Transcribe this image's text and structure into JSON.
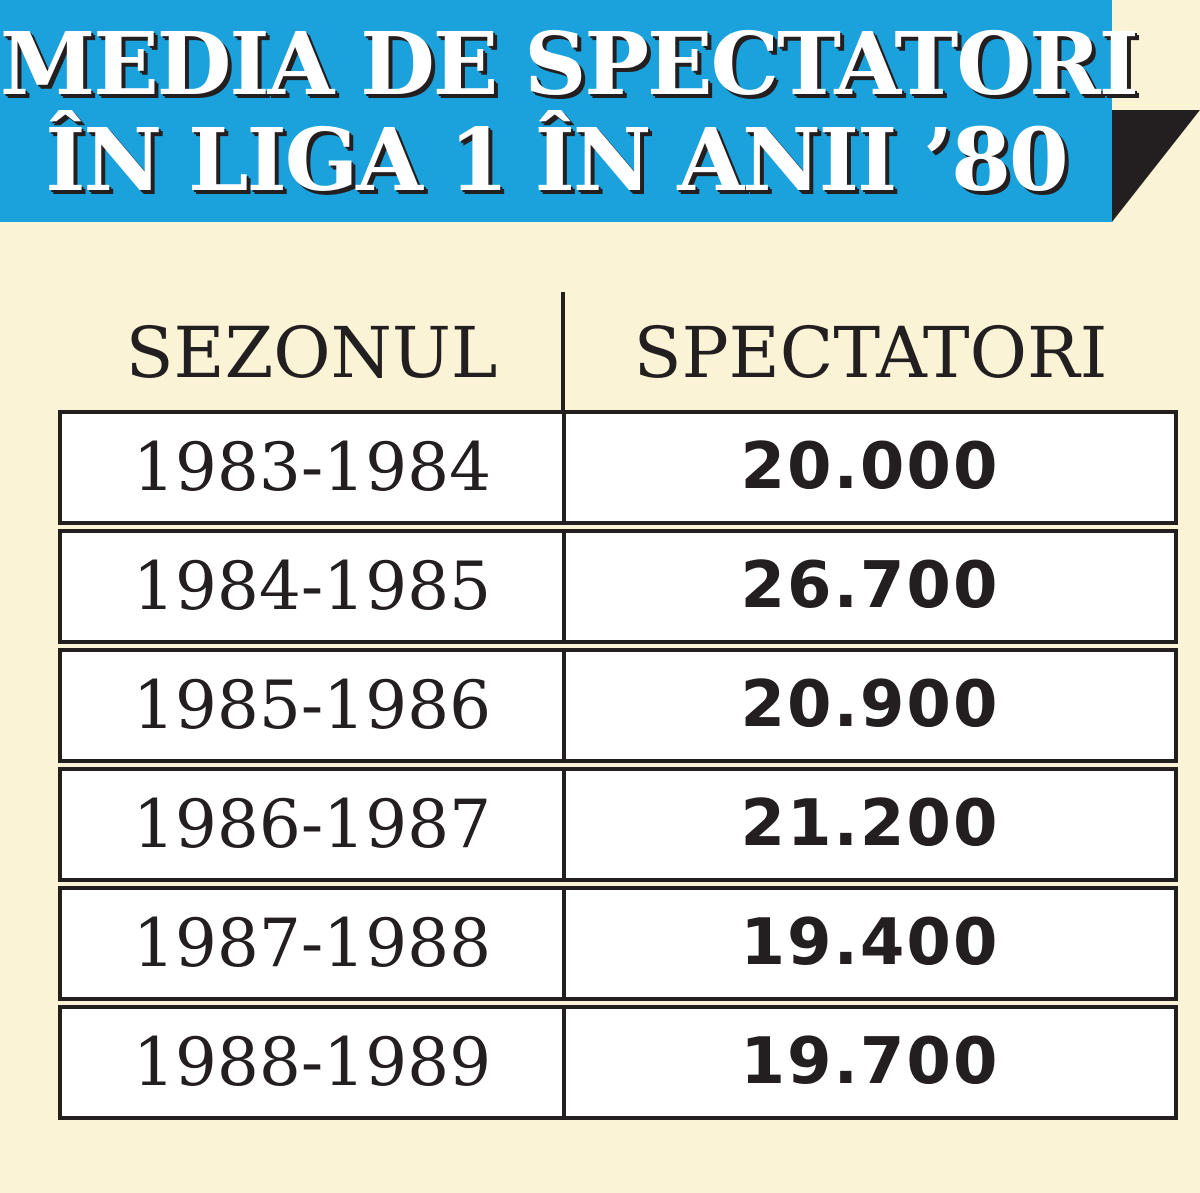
{
  "header": {
    "title": [
      "MEDIA DE SPECTATORI",
      "ÎN LIGA 1 ÎN ANII ’80"
    ]
  },
  "table": {
    "columns": [
      "SEZONUL",
      "SPECTATORI"
    ],
    "rows": [
      [
        "1983-1984",
        "20.000"
      ],
      [
        "1984-1985",
        "26.700"
      ],
      [
        "1985-1986",
        "20.900"
      ],
      [
        "1986-1987",
        "21.200"
      ],
      [
        "1987-1988",
        "19.400"
      ],
      [
        "1988-1989",
        "19.700"
      ]
    ]
  }
}
